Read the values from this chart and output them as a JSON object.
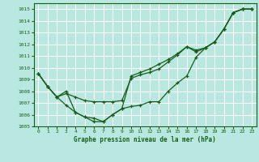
{
  "background_color": "#b8e8e0",
  "grid_color": "#ffffff",
  "line_color": "#1a5c1a",
  "marker_color": "#1a5c1a",
  "title": "Graphe pression niveau de la mer (hPa)",
  "ylim": [
    1005,
    1015.5
  ],
  "xlim": [
    -0.5,
    23.5
  ],
  "yticks": [
    1005,
    1006,
    1007,
    1008,
    1009,
    1010,
    1011,
    1012,
    1013,
    1014,
    1015
  ],
  "xticks": [
    0,
    1,
    2,
    3,
    4,
    5,
    6,
    7,
    8,
    9,
    10,
    11,
    12,
    13,
    14,
    15,
    16,
    17,
    18,
    19,
    20,
    21,
    22,
    23
  ],
  "series1": [
    1009.5,
    1008.4,
    1007.5,
    1006.8,
    1006.2,
    1005.8,
    1005.7,
    1005.4,
    1006.0,
    1006.5,
    1006.7,
    1006.8,
    1007.1,
    1007.1,
    1008.0,
    1008.7,
    1009.3,
    1010.9,
    1011.7,
    1012.2,
    1013.3,
    1014.7,
    1015.0,
    1015.0
  ],
  "series2": [
    1009.5,
    1008.4,
    1007.5,
    1007.8,
    1007.5,
    1007.2,
    1007.1,
    1007.1,
    1007.1,
    1007.2,
    1009.1,
    1009.4,
    1009.6,
    1009.9,
    1010.5,
    1011.1,
    1011.8,
    1011.35,
    1011.7,
    1012.2,
    1013.3,
    1014.7,
    1015.0,
    1015.0
  ],
  "series3": [
    1009.5,
    1008.4,
    1007.5,
    1008.0,
    1006.2,
    1005.8,
    1005.4,
    1005.4,
    1006.0,
    1006.5,
    1009.3,
    1009.6,
    1009.9,
    1010.3,
    1010.7,
    1011.2,
    1011.8,
    1011.5,
    1011.7,
    1012.2,
    1013.3,
    1014.7,
    1015.0,
    1015.0
  ]
}
